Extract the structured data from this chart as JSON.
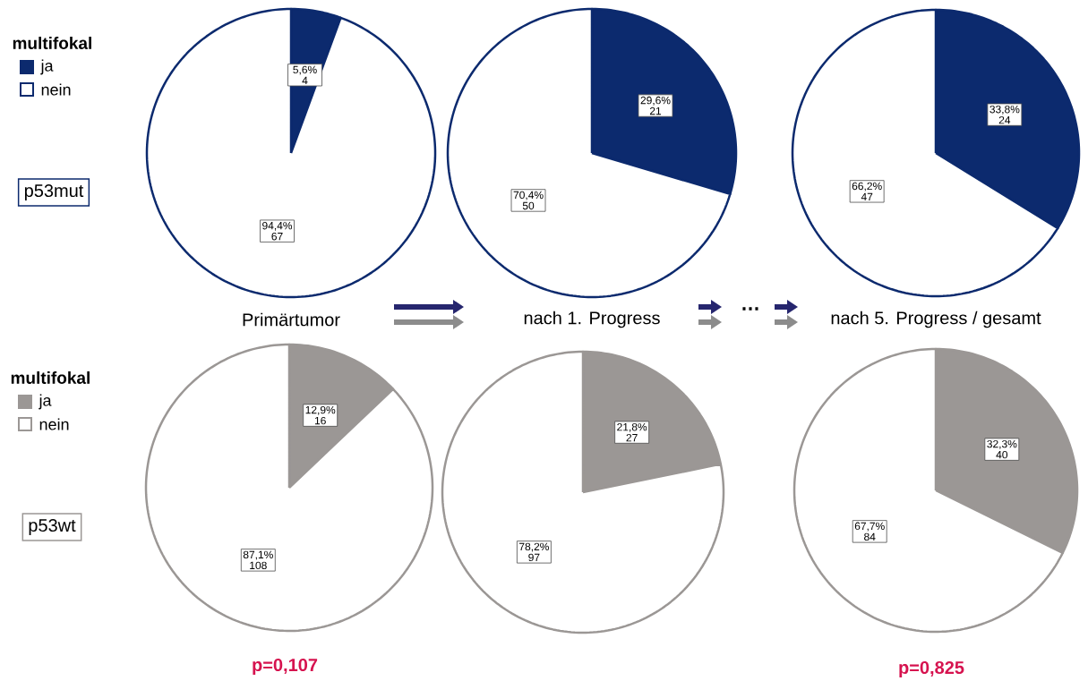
{
  "chart_data": [
    {
      "type": "pie",
      "title": "Primärtumor",
      "subtitle": "p53mut",
      "legend_title": "multifokal",
      "legend": "left",
      "categories": [
        "ja",
        "nein"
      ],
      "values": [
        5.6,
        94.4
      ],
      "value_labels": [
        "5,6% 4",
        "94,4% 67"
      ],
      "colors": [
        "#0c2a6e",
        "#ffffff"
      ]
    },
    {
      "type": "pie",
      "title": "nach 1. Progress",
      "annotations": [
        "…"
      ],
      "categories": [
        null,
        null
      ],
      "values": [
        29.6,
        70.4
      ],
      "value_labels": [
        "29,6% 21",
        "70,4% 50"
      ],
      "colors": [
        "#0c2a6e",
        "#ffffff"
      ]
    },
    {
      "type": "pie",
      "title": "nach 5. Progress / gesamt",
      "categories": [
        null,
        null
      ],
      "values": [
        33.8,
        66.2
      ],
      "value_labels": [
        "33,8% 24",
        "66,2% 47"
      ],
      "colors": [
        "#0c2a6e",
        "#ffffff"
      ]
    },
    {
      "type": "pie",
      "subtitle": "p53wt",
      "legend_title": "multifokal",
      "legend": "left",
      "annotations": [
        "p=0,107"
      ],
      "categories": [
        "ja",
        "nein"
      ],
      "values": [
        12.9,
        87.1
      ],
      "value_labels": [
        "12,9% 16",
        "87,1% 108"
      ],
      "colors": [
        "#9b9795",
        "#ffffff"
      ]
    },
    {
      "type": "pie",
      "categories": [
        null,
        null
      ],
      "values": [
        21.8,
        78.2
      ],
      "value_labels": [
        "21,8% 27",
        "78,2% 97"
      ],
      "colors": [
        "#9b9795",
        "#ffffff"
      ]
    },
    {
      "type": "pie",
      "annotations": [
        "p=0,825"
      ],
      "categories": [
        null,
        null
      ],
      "values": [
        32.3,
        67.7
      ],
      "value_labels": [
        "32,3% 40",
        "67,7% 84"
      ],
      "colors": [
        "#9b9795",
        "#ffffff"
      ]
    }
  ]
}
